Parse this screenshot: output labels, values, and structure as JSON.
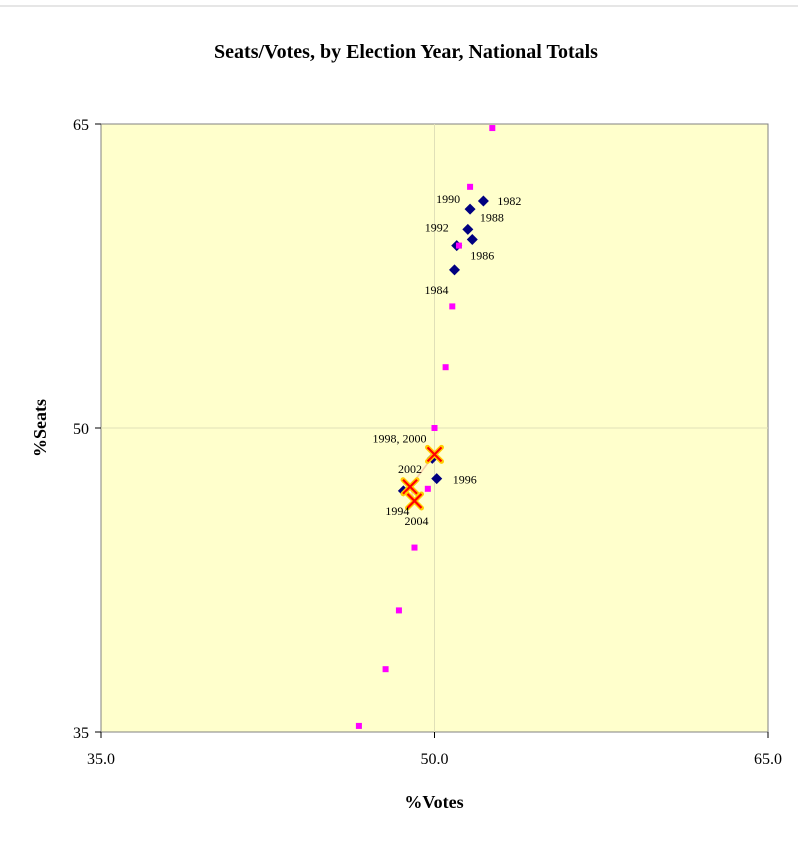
{
  "chart_data": {
    "type": "scatter",
    "title": "Seats/Votes, by Election Year, National Totals",
    "xlabel": "%Votes",
    "ylabel": "%Seats",
    "xlim": [
      35,
      65
    ],
    "ylim": [
      35,
      65
    ],
    "x_ticks": [
      "35.0",
      "50.0",
      "65.0"
    ],
    "y_ticks": [
      "35",
      "50",
      "65"
    ],
    "grid": "center cross lines at 50",
    "plot_background": "#ffffcc",
    "series": [
      {
        "marker": "diamond",
        "color": "#000080",
        "points": [
          {
            "x": 52.2,
            "y": 61.2,
            "label": "1982"
          },
          {
            "x": 50.9,
            "y": 57.8,
            "label": "1984"
          },
          {
            "x": 51.7,
            "y": 59.3,
            "label": "1986"
          },
          {
            "x": 51.5,
            "y": 59.8,
            "label": "1988"
          },
          {
            "x": 51.6,
            "y": 60.8,
            "label": "1990"
          },
          {
            "x": 51.0,
            "y": 59.0,
            "label": "1992"
          },
          {
            "x": 48.6,
            "y": 46.9,
            "label": "1994"
          },
          {
            "x": 50.1,
            "y": 47.5,
            "label": "1996"
          },
          {
            "x": 49.9,
            "y": 48.5,
            "label": ""
          }
        ]
      },
      {
        "marker": "x",
        "color": "#ff0000",
        "points": [
          {
            "x": 50.0,
            "y": 48.7,
            "label": "1998, 2000"
          },
          {
            "x": 48.9,
            "y": 47.1,
            "label": "2002"
          },
          {
            "x": 49.1,
            "y": 46.4,
            "label": "2004"
          }
        ]
      },
      {
        "marker": "square",
        "color": "#ff00ff",
        "points": [
          {
            "x": 49.1,
            "y": 44.1
          },
          {
            "x": 48.4,
            "y": 41.0
          },
          {
            "x": 47.8,
            "y": 38.1
          },
          {
            "x": 46.6,
            "y": 35.3
          },
          {
            "x": 49.7,
            "y": 47.0
          },
          {
            "x": 50.0,
            "y": 50.0
          },
          {
            "x": 50.5,
            "y": 53.0
          },
          {
            "x": 50.8,
            "y": 56.0
          },
          {
            "x": 51.1,
            "y": 59.0
          },
          {
            "x": 51.6,
            "y": 61.9
          },
          {
            "x": 52.6,
            "y": 64.8
          }
        ]
      }
    ]
  }
}
